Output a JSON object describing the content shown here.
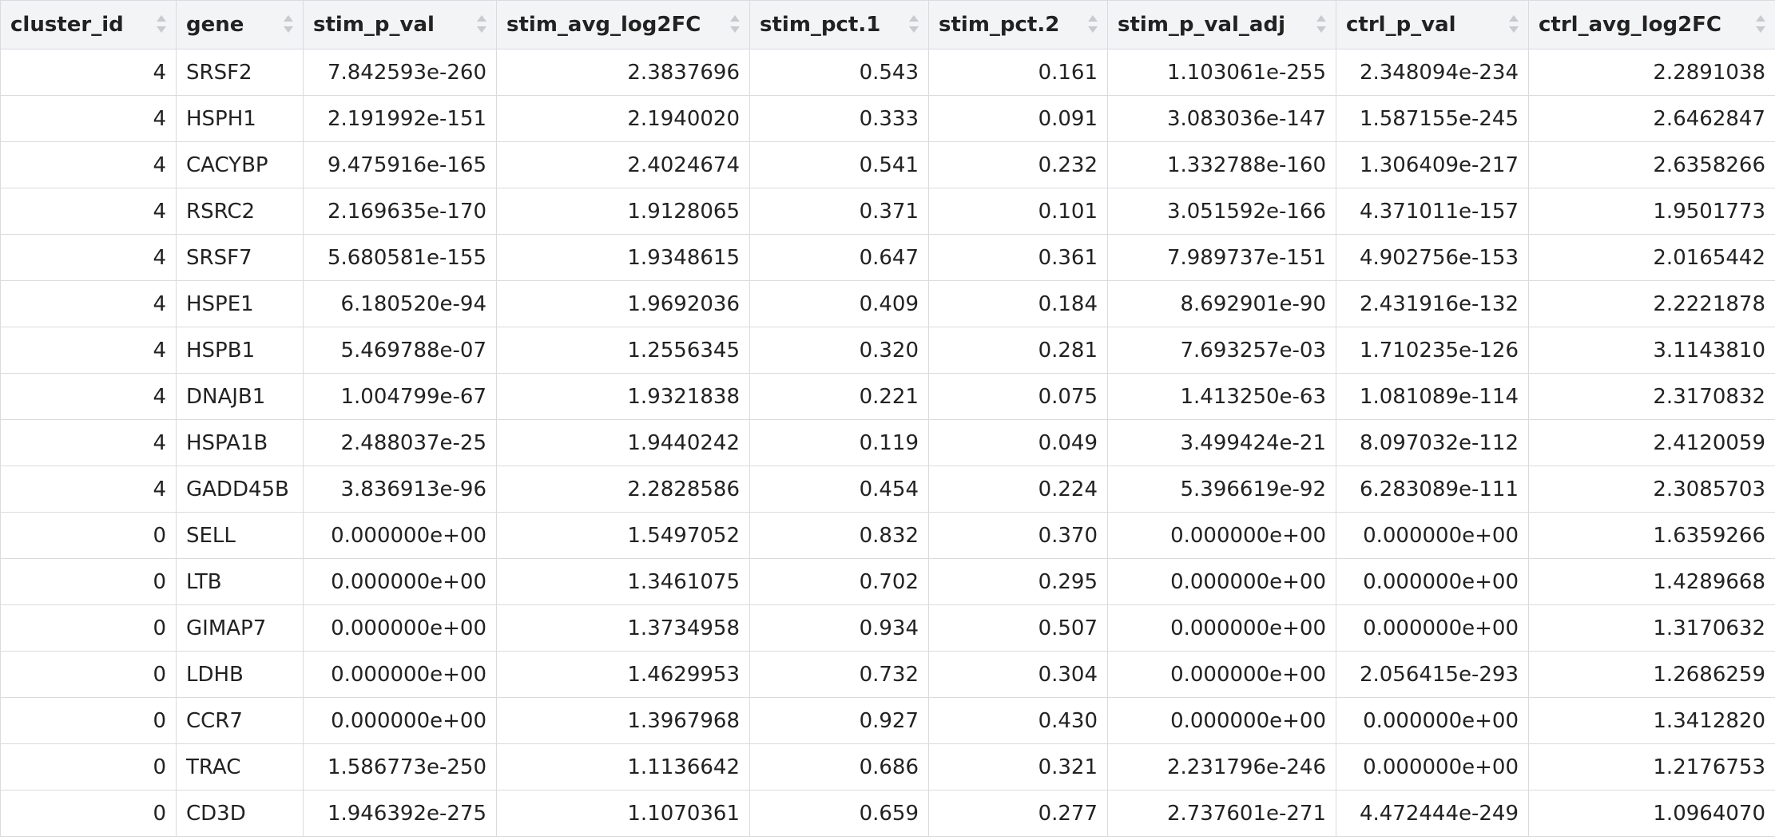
{
  "table": {
    "columns": [
      "cluster_id",
      "gene",
      "stim_p_val",
      "stim_avg_log2FC",
      "stim_pct.1",
      "stim_pct.2",
      "stim_p_val_adj",
      "ctrl_p_val",
      "ctrl_avg_log2FC"
    ],
    "rows": [
      [
        "4",
        "SRSF2",
        "7.842593e-260",
        "2.3837696",
        "0.543",
        "0.161",
        "1.103061e-255",
        "2.348094e-234",
        "2.2891038"
      ],
      [
        "4",
        "HSPH1",
        "2.191992e-151",
        "2.1940020",
        "0.333",
        "0.091",
        "3.083036e-147",
        "1.587155e-245",
        "2.6462847"
      ],
      [
        "4",
        "CACYBP",
        "9.475916e-165",
        "2.4024674",
        "0.541",
        "0.232",
        "1.332788e-160",
        "1.306409e-217",
        "2.6358266"
      ],
      [
        "4",
        "RSRC2",
        "2.169635e-170",
        "1.9128065",
        "0.371",
        "0.101",
        "3.051592e-166",
        "4.371011e-157",
        "1.9501773"
      ],
      [
        "4",
        "SRSF7",
        "5.680581e-155",
        "1.9348615",
        "0.647",
        "0.361",
        "7.989737e-151",
        "4.902756e-153",
        "2.0165442"
      ],
      [
        "4",
        "HSPE1",
        "6.180520e-94",
        "1.9692036",
        "0.409",
        "0.184",
        "8.692901e-90",
        "2.431916e-132",
        "2.2221878"
      ],
      [
        "4",
        "HSPB1",
        "5.469788e-07",
        "1.2556345",
        "0.320",
        "0.281",
        "7.693257e-03",
        "1.710235e-126",
        "3.1143810"
      ],
      [
        "4",
        "DNAJB1",
        "1.004799e-67",
        "1.9321838",
        "0.221",
        "0.075",
        "1.413250e-63",
        "1.081089e-114",
        "2.3170832"
      ],
      [
        "4",
        "HSPA1B",
        "2.488037e-25",
        "1.9440242",
        "0.119",
        "0.049",
        "3.499424e-21",
        "8.097032e-112",
        "2.4120059"
      ],
      [
        "4",
        "GADD45B",
        "3.836913e-96",
        "2.2828586",
        "0.454",
        "0.224",
        "5.396619e-92",
        "6.283089e-111",
        "2.3085703"
      ],
      [
        "0",
        "SELL",
        "0.000000e+00",
        "1.5497052",
        "0.832",
        "0.370",
        "0.000000e+00",
        "0.000000e+00",
        "1.6359266"
      ],
      [
        "0",
        "LTB",
        "0.000000e+00",
        "1.3461075",
        "0.702",
        "0.295",
        "0.000000e+00",
        "0.000000e+00",
        "1.4289668"
      ],
      [
        "0",
        "GIMAP7",
        "0.000000e+00",
        "1.3734958",
        "0.934",
        "0.507",
        "0.000000e+00",
        "0.000000e+00",
        "1.3170632"
      ],
      [
        "0",
        "LDHB",
        "0.000000e+00",
        "1.4629953",
        "0.732",
        "0.304",
        "0.000000e+00",
        "2.056415e-293",
        "1.2686259"
      ],
      [
        "0",
        "CCR7",
        "0.000000e+00",
        "1.3967968",
        "0.927",
        "0.430",
        "0.000000e+00",
        "0.000000e+00",
        "1.3412820"
      ],
      [
        "0",
        "TRAC",
        "1.586773e-250",
        "1.1136642",
        "0.686",
        "0.321",
        "2.231796e-246",
        "0.000000e+00",
        "1.2176753"
      ],
      [
        "0",
        "CD3D",
        "1.946392e-275",
        "1.1070361",
        "0.659",
        "0.277",
        "2.737601e-271",
        "4.472444e-249",
        "1.0964070"
      ]
    ]
  }
}
